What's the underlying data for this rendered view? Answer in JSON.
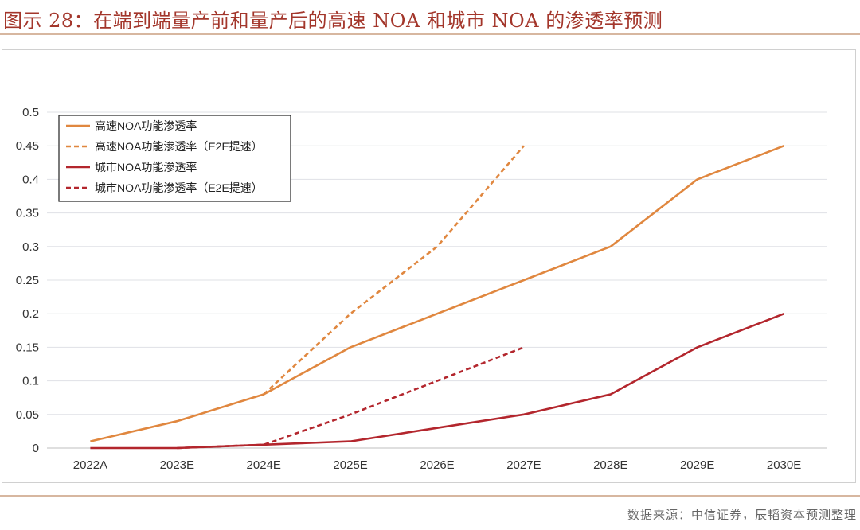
{
  "header": {
    "title": "图示 28：在端到端量产前和量产后的高速 NOA 和城市 NOA 的渗透率预测"
  },
  "footer": {
    "source": "数据来源：中信证券，辰韬资本预测整理"
  },
  "chart_data": {
    "type": "line",
    "categories": [
      "2022A",
      "2023E",
      "2024E",
      "2025E",
      "2026E",
      "2027E",
      "2028E",
      "2029E",
      "2030E"
    ],
    "yticks": [
      "0",
      "0.05",
      "0.1",
      "0.15",
      "0.2",
      "0.25",
      "0.3",
      "0.35",
      "0.4",
      "0.45",
      "0.5"
    ],
    "ylim": [
      0,
      0.5
    ],
    "grid": true,
    "legend_position": "top-left",
    "series": [
      {
        "name": "高速NOA功能渗透率",
        "color": "#e0873f",
        "dash": false,
        "values": [
          0.01,
          0.04,
          0.08,
          0.15,
          0.2,
          0.25,
          0.3,
          0.4,
          0.45
        ]
      },
      {
        "name": "高速NOA功能渗透率（E2E提速）",
        "color": "#e0873f",
        "dash": true,
        "values": [
          null,
          null,
          0.08,
          0.2,
          0.3,
          0.45,
          null,
          null,
          null
        ]
      },
      {
        "name": "城市NOA功能渗透率",
        "color": "#b3262d",
        "dash": false,
        "values": [
          0,
          0,
          0.005,
          0.01,
          0.03,
          0.05,
          0.08,
          0.15,
          0.2
        ]
      },
      {
        "name": "城市NOA功能渗透率（E2E提速）",
        "color": "#b3262d",
        "dash": true,
        "values": [
          null,
          0,
          0.005,
          0.05,
          0.1,
          0.15,
          null,
          null,
          null
        ]
      }
    ]
  }
}
